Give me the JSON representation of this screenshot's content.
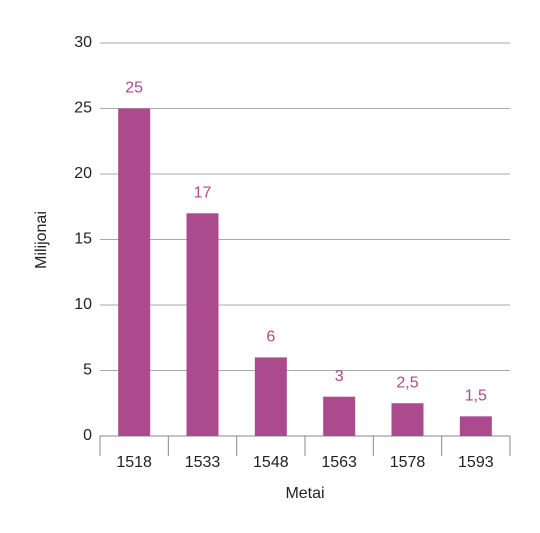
{
  "chart_data": {
    "type": "bar",
    "x_label": "Metai",
    "y_label": "Milijonai",
    "categories": [
      "1518",
      "1533",
      "1548",
      "1563",
      "1578",
      "1593"
    ],
    "values": [
      25,
      17,
      6,
      3,
      2.5,
      1.5
    ],
    "value_labels": [
      "25",
      "17",
      "6",
      "3",
      "2,5",
      "1,5"
    ],
    "color": "#ab4a8c",
    "ylim": [
      0,
      30
    ],
    "yticks": [
      0,
      5,
      10,
      15,
      20,
      25,
      30
    ],
    "grid": true
  }
}
